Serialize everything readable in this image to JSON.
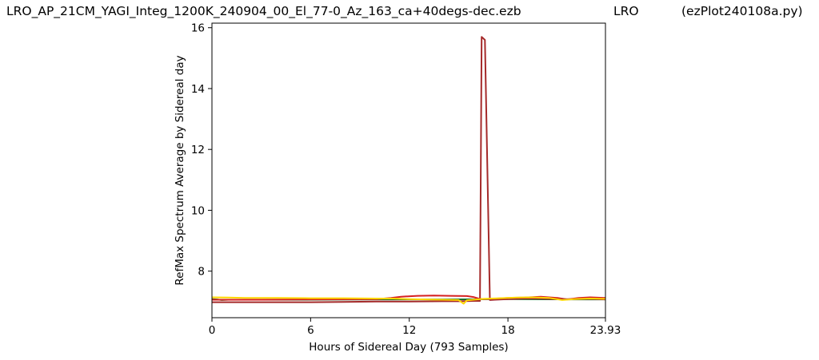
{
  "header": {
    "file_title": "LRO_AP_21CM_YAGI_Integ_1200K_240904_00_El_77-0_Az_163_ca+40degs-dec.ezb",
    "site": "LRO",
    "program": "(ezPlot240108a.py)"
  },
  "chart_data": {
    "type": "line",
    "xlabel": "Hours of Sidereal Day  (793 Samples)",
    "ylabel": "RefMax Spectrum Average by Sidereal day",
    "xlim": [
      0,
      23.93
    ],
    "ylim": [
      6.47,
      16.15
    ],
    "xticks": [
      0,
      6,
      12,
      18,
      23.93
    ],
    "xtick_labels": [
      "0",
      "6",
      "12",
      "18",
      "23.93"
    ],
    "yticks": [
      8,
      10,
      12,
      14,
      16
    ],
    "ytick_labels": [
      "8",
      "10",
      "12",
      "14",
      "16"
    ],
    "grid": false,
    "series": [
      {
        "color": "#1f6e2a",
        "points": [
          [
            0,
            7.08
          ],
          [
            0.3,
            7.07
          ],
          [
            0.6,
            7.05
          ],
          [
            1.0,
            7.06
          ],
          [
            5,
            7.06
          ],
          [
            10,
            7.07
          ],
          [
            14,
            7.07
          ],
          [
            18,
            7.08
          ],
          [
            22,
            7.07
          ],
          [
            23.93,
            7.07
          ]
        ]
      },
      {
        "color": "#d62020",
        "points": [
          [
            0,
            7.06
          ],
          [
            3,
            7.06
          ],
          [
            6,
            7.07
          ],
          [
            10,
            7.08
          ],
          [
            10.9,
            7.12
          ],
          [
            11.5,
            7.16
          ],
          [
            12.5,
            7.19
          ],
          [
            13.5,
            7.2
          ],
          [
            14.5,
            7.19
          ],
          [
            15.5,
            7.18
          ],
          [
            15.9,
            7.15
          ],
          [
            16.2,
            7.1
          ],
          [
            16.5,
            7.08
          ],
          [
            17,
            7.09
          ],
          [
            18,
            7.12
          ],
          [
            19,
            7.13
          ],
          [
            20,
            7.16
          ],
          [
            21,
            7.12
          ],
          [
            21.6,
            7.07
          ],
          [
            22.3,
            7.12
          ],
          [
            23,
            7.14
          ],
          [
            23.93,
            7.12
          ]
        ]
      },
      {
        "color": "#a52a2a",
        "points": [
          [
            0,
            6.98
          ],
          [
            2,
            6.98
          ],
          [
            4,
            6.98
          ],
          [
            6,
            6.98
          ],
          [
            8,
            6.99
          ],
          [
            10,
            7.0
          ],
          [
            12,
            7.0
          ],
          [
            14,
            7.01
          ],
          [
            15,
            7.01
          ],
          [
            16,
            7.02
          ],
          [
            16.3,
            7.02
          ],
          [
            16.4,
            15.7
          ],
          [
            16.6,
            15.6
          ],
          [
            16.9,
            7.05
          ],
          [
            17.2,
            7.06
          ],
          [
            18,
            7.08
          ],
          [
            19,
            7.1
          ],
          [
            20,
            7.1
          ],
          [
            21,
            7.08
          ],
          [
            22,
            7.08
          ],
          [
            23,
            7.09
          ],
          [
            23.93,
            7.07
          ]
        ]
      },
      {
        "color": "#ffd700",
        "points": [
          [
            0,
            7.14
          ],
          [
            1,
            7.13
          ],
          [
            2,
            7.12
          ],
          [
            4,
            7.12
          ],
          [
            6,
            7.11
          ],
          [
            8,
            7.11
          ],
          [
            10,
            7.1
          ],
          [
            11,
            7.1
          ],
          [
            12,
            7.08
          ],
          [
            13,
            7.07
          ],
          [
            14,
            7.06
          ],
          [
            15,
            7.05
          ],
          [
            15.3,
            6.93
          ],
          [
            15.5,
            7.04
          ],
          [
            15.9,
            7.06
          ],
          [
            16.5,
            7.09
          ],
          [
            17.5,
            7.11
          ],
          [
            18.5,
            7.13
          ],
          [
            19.5,
            7.14
          ],
          [
            20.5,
            7.12
          ],
          [
            21.3,
            7.05
          ],
          [
            22,
            7.08
          ],
          [
            23,
            7.1
          ],
          [
            23.93,
            7.09
          ]
        ]
      }
    ]
  }
}
